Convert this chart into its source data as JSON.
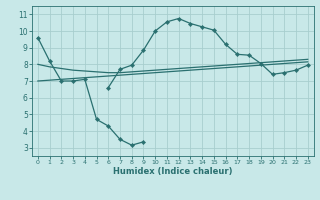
{
  "background_color": "#c8e8e8",
  "grid_color": "#a8cece",
  "line_color": "#2a7070",
  "xlabel": "Humidex (Indice chaleur)",
  "xlim": [
    -0.5,
    23.5
  ],
  "ylim": [
    2.5,
    11.5
  ],
  "yticks": [
    3,
    4,
    5,
    6,
    7,
    8,
    9,
    10,
    11
  ],
  "xticks": [
    0,
    1,
    2,
    3,
    4,
    5,
    6,
    7,
    8,
    9,
    10,
    11,
    12,
    13,
    14,
    15,
    16,
    17,
    18,
    19,
    20,
    21,
    22,
    23
  ],
  "line1_x": [
    0,
    1,
    2,
    3,
    4,
    5,
    6,
    7,
    8,
    9
  ],
  "line1_y": [
    9.6,
    8.2,
    7.0,
    7.0,
    7.1,
    4.7,
    4.3,
    3.5,
    3.15,
    3.35
  ],
  "line2_x": [
    6,
    7,
    8,
    9,
    10,
    11,
    12,
    13,
    14,
    15,
    16,
    17,
    18,
    19,
    20,
    21,
    22,
    23
  ],
  "line2_y": [
    6.6,
    7.7,
    7.95,
    8.85,
    10.0,
    10.55,
    10.75,
    10.45,
    10.25,
    10.05,
    9.2,
    8.6,
    8.55,
    8.05,
    7.4,
    7.5,
    7.65,
    7.95
  ],
  "line3_x": [
    0,
    1,
    2,
    3,
    4,
    5,
    6,
    7,
    8,
    9,
    10,
    11,
    12,
    13,
    14,
    15,
    16,
    17,
    18,
    19,
    20,
    21,
    22,
    23
  ],
  "line3_y": [
    8.0,
    7.85,
    7.75,
    7.65,
    7.6,
    7.55,
    7.5,
    7.5,
    7.55,
    7.6,
    7.65,
    7.7,
    7.75,
    7.8,
    7.85,
    7.9,
    7.95,
    8.0,
    8.05,
    8.1,
    8.15,
    8.2,
    8.25,
    8.3
  ],
  "line4_x": [
    0,
    1,
    2,
    3,
    4,
    5,
    6,
    7,
    8,
    9,
    10,
    11,
    12,
    13,
    14,
    15,
    16,
    17,
    18,
    19,
    20,
    21,
    22,
    23
  ],
  "line4_y": [
    7.0,
    7.05,
    7.1,
    7.15,
    7.2,
    7.25,
    7.3,
    7.35,
    7.4,
    7.45,
    7.5,
    7.55,
    7.6,
    7.65,
    7.7,
    7.75,
    7.8,
    7.85,
    7.9,
    7.95,
    8.0,
    8.05,
    8.1,
    8.15
  ],
  "title_fontsize": 7,
  "xlabel_fontsize": 6,
  "tick_fontsize_x": 4.5,
  "tick_fontsize_y": 5.5,
  "marker_size": 2.2,
  "linewidth": 0.9
}
